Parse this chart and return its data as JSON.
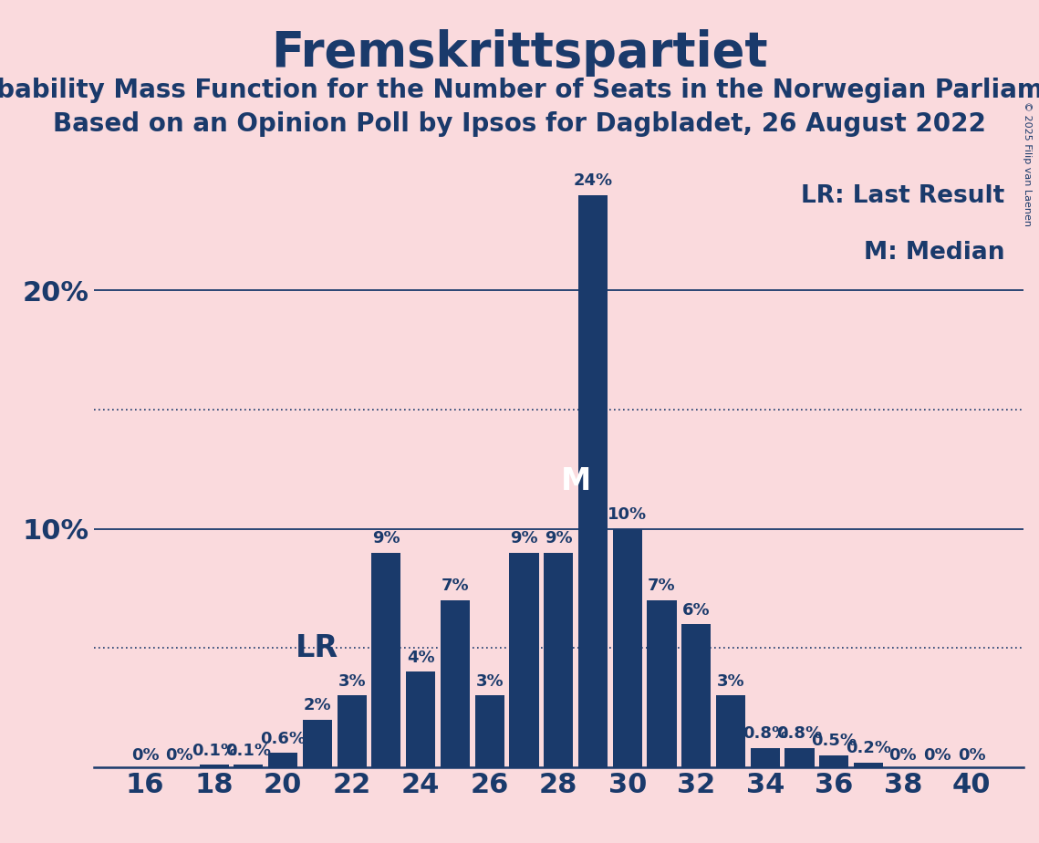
{
  "title": "Fremskrittspartiet",
  "subtitle1": "Probability Mass Function for the Number of Seats in the Norwegian Parliament",
  "subtitle2": "Based on an Opinion Poll by Ipsos for Dagbladet, 26 August 2022",
  "copyright": "© 2025 Filip van Laenen",
  "background_color": "#fadadd",
  "bar_color": "#1a3a6b",
  "text_color": "#1a3a6b",
  "seats": [
    16,
    17,
    18,
    19,
    20,
    21,
    22,
    23,
    24,
    25,
    26,
    27,
    28,
    29,
    30,
    31,
    32,
    33,
    34,
    35,
    36,
    37,
    38,
    39,
    40
  ],
  "probabilities": [
    0.0,
    0.0,
    0.1,
    0.1,
    0.6,
    2.0,
    3.0,
    9.0,
    4.0,
    7.0,
    3.0,
    9.0,
    9.0,
    24.0,
    10.0,
    7.0,
    6.0,
    3.0,
    0.8,
    0.8,
    0.5,
    0.2,
    0.0,
    0.0,
    0.0
  ],
  "labels": [
    "0%",
    "0%",
    "0.1%",
    "0.1%",
    "0.6%",
    "2%",
    "3%",
    "9%",
    "4%",
    "7%",
    "3%",
    "9%",
    "9%",
    "24%",
    "10%",
    "7%",
    "6%",
    "3%",
    "0.8%",
    "0.8%",
    "0.5%",
    "0.2%",
    "0%",
    "0%",
    "0%"
  ],
  "last_result": 21,
  "median": 29,
  "lr_label": "LR",
  "median_label": "M",
  "legend_lr": "LR: Last Result",
  "legend_m": "M: Median",
  "ylim": [
    0,
    26
  ],
  "solid_gridlines": [
    10,
    20
  ],
  "dotted_gridlines": [
    5,
    15
  ],
  "bar_label_fontsize": 13,
  "annotation_fontsize": 24,
  "legend_fontsize": 19,
  "xtick_fontsize": 22,
  "ytick_fontsize": 22,
  "title_fontsize": 38,
  "subtitle_fontsize": 20
}
